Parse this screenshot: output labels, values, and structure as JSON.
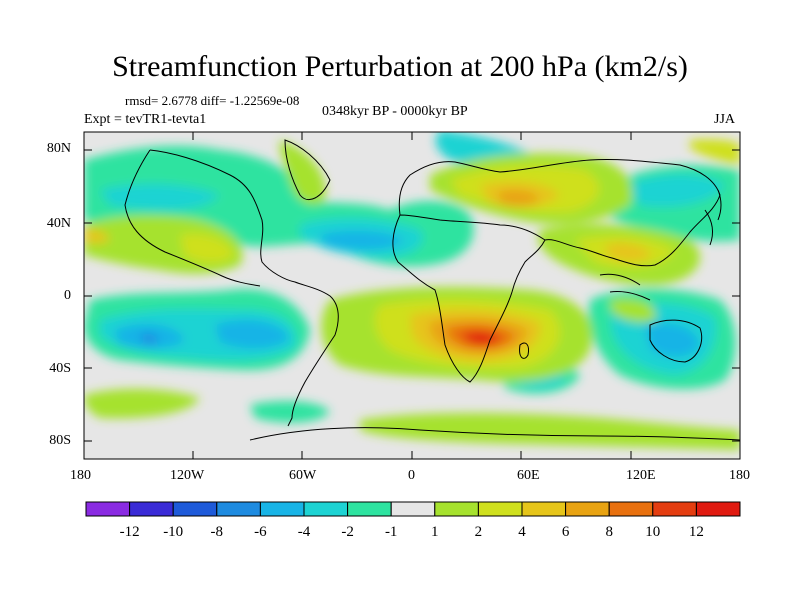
{
  "figure": {
    "title": "Streamfunction Perturbation at 200 hPa (km2/s)",
    "stats_line": "rmsd= 2.6778 diff= -1.22569e-08",
    "period_line": "0348kyr BP - 0000kyr BP",
    "expt_line": "Expt = tevTR1-tevta1",
    "season": "JJA"
  },
  "axes": {
    "lat_ticks": [
      "80N",
      "40N",
      "0",
      "40S",
      "80S"
    ],
    "lon_ticks": [
      "180",
      "120W",
      "60W",
      "0",
      "60E",
      "120E",
      "180"
    ]
  },
  "colorbar": {
    "labels": [
      "-12",
      "-10",
      "-8",
      "-6",
      "-4",
      "-2",
      "-1",
      "1",
      "2",
      "4",
      "6",
      "8",
      "10",
      "12"
    ],
    "colors": [
      "#8a2be2",
      "#3a2bd6",
      "#1e5ad9",
      "#1e8be0",
      "#18b4e6",
      "#1dd3d3",
      "#2ee3a0",
      "#e6e6e6",
      "#a6e22e",
      "#cfe01e",
      "#e6c51a",
      "#e8a312",
      "#e8700e",
      "#e43d10",
      "#e01a10"
    ]
  },
  "map_colors": {
    "background": "#e6e6e6",
    "coast": "#000000"
  }
}
